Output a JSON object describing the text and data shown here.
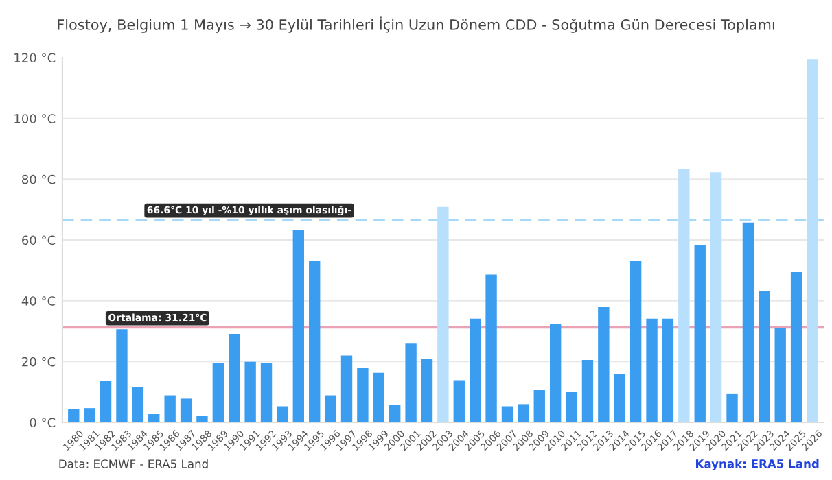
{
  "chart_data": {
    "type": "bar",
    "title": "Flostoy, Belgium 1 Mayıs → 30 Eylül Tarihleri İçin Uzun Dönem CDD - Soğutma Gün Derecesi Toplamı",
    "categories": [
      "1980",
      "1981",
      "1982",
      "1983",
      "1984",
      "1985",
      "1986",
      "1987",
      "1988",
      "1989",
      "1990",
      "1991",
      "1992",
      "1993",
      "1994",
      "1995",
      "1996",
      "1997",
      "1998",
      "1999",
      "2000",
      "2001",
      "2002",
      "2003",
      "2004",
      "2005",
      "2006",
      "2007",
      "2008",
      "2009",
      "2010",
      "2011",
      "2012",
      "2013",
      "2014",
      "2015",
      "2016",
      "2017",
      "2018",
      "2019",
      "2020",
      "2021",
      "2022",
      "2023",
      "2024",
      "2025",
      "2026"
    ],
    "values": [
      4.4,
      4.7,
      13.7,
      30.6,
      11.6,
      2.7,
      8.9,
      7.8,
      2.1,
      19.5,
      29.1,
      19.9,
      19.5,
      5.3,
      63.2,
      53.1,
      8.9,
      22.0,
      18.0,
      16.3,
      5.7,
      26.1,
      20.8,
      70.9,
      13.9,
      34.1,
      48.6,
      5.3,
      6.0,
      10.6,
      32.3,
      10.1,
      20.5,
      38.0,
      16.0,
      53.1,
      34.1,
      34.1,
      83.3,
      58.3,
      82.3,
      9.5,
      65.7,
      43.2,
      31.0,
      49.5,
      119.5
    ],
    "colors": [
      "#3a9df0",
      "#3a9df0",
      "#3a9df0",
      "#3a9df0",
      "#3a9df0",
      "#3a9df0",
      "#3a9df0",
      "#3a9df0",
      "#3a9df0",
      "#3a9df0",
      "#3a9df0",
      "#3a9df0",
      "#3a9df0",
      "#3a9df0",
      "#3a9df0",
      "#3a9df0",
      "#3a9df0",
      "#3a9df0",
      "#3a9df0",
      "#3a9df0",
      "#3a9df0",
      "#3a9df0",
      "#3a9df0",
      "#b8e0fc",
      "#3a9df0",
      "#3a9df0",
      "#3a9df0",
      "#3a9df0",
      "#3a9df0",
      "#3a9df0",
      "#3a9df0",
      "#3a9df0",
      "#3a9df0",
      "#3a9df0",
      "#3a9df0",
      "#3a9df0",
      "#3a9df0",
      "#3a9df0",
      "#b8e0fc",
      "#3a9df0",
      "#b8e0fc",
      "#3a9df0",
      "#3a9df0",
      "#3a9df0",
      "#3a9df0",
      "#3a9df0",
      "#b8e0fc"
    ],
    "ylim": [
      0,
      120
    ],
    "yticks": [
      {
        "value": 0,
        "label": "0 °C"
      },
      {
        "value": 20,
        "label": "20 °C"
      },
      {
        "value": 40,
        "label": "40 °C"
      },
      {
        "value": 60,
        "label": "60 °C"
      },
      {
        "value": 80,
        "label": "80 °C"
      },
      {
        "value": 100,
        "label": "100 °C"
      },
      {
        "value": 120,
        "label": "120 °C"
      }
    ],
    "grid": "y",
    "ref_lines": [
      {
        "axis": "y",
        "value": 66.6,
        "label": "66.6°C 10 yıl -%10 yıllık aşım olasılığı-",
        "color": "#a8d8f8",
        "line_style": "dashed"
      },
      {
        "axis": "y",
        "value": 31.21,
        "label": "Ortalama: 31.21°C",
        "color": "#eaa2b4",
        "line_style": "solid"
      }
    ],
    "annotations": [
      "Data: ECMWF - ERA5 Land",
      "Kaynak: ERA5 Land"
    ]
  }
}
